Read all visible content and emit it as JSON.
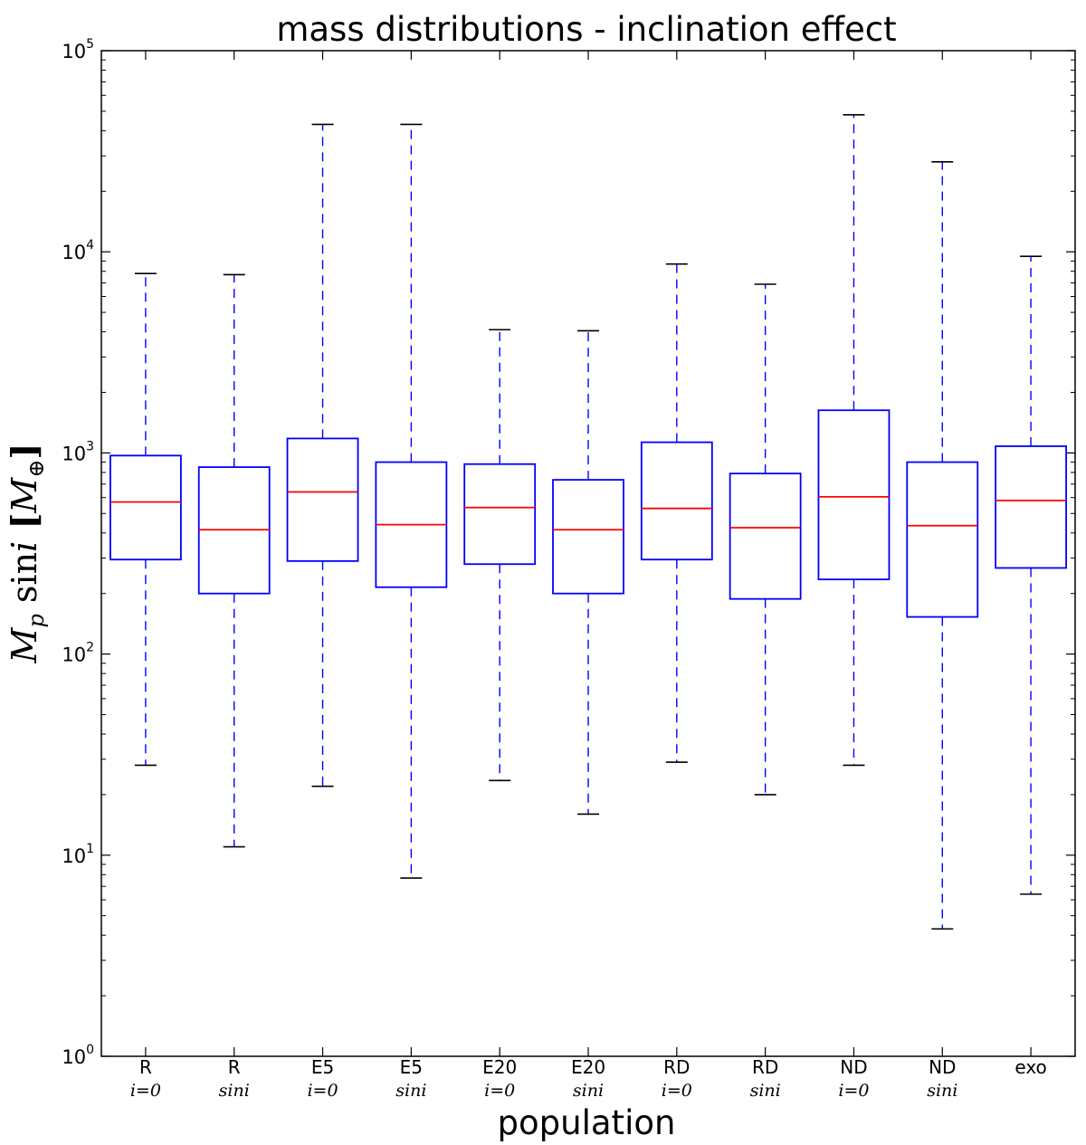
{
  "chart_data": {
    "type": "box",
    "title": "mass distributions - inclination effect",
    "xlabel": "population",
    "ylabel": "M_p sini [M_⊕]",
    "yscale": "log",
    "ylim": [
      1,
      100000
    ],
    "ytick_labels": [
      {
        "base": "10",
        "exp": "0"
      },
      {
        "base": "10",
        "exp": "1"
      },
      {
        "base": "10",
        "exp": "2"
      },
      {
        "base": "10",
        "exp": "3"
      },
      {
        "base": "10",
        "exp": "4"
      },
      {
        "base": "10",
        "exp": "5"
      }
    ],
    "grid": false,
    "colors": {
      "box": "#0000ff",
      "median": "#ff0000",
      "axis": "#000000"
    },
    "categories": [
      {
        "label": "R",
        "sub": "i=0"
      },
      {
        "label": "R",
        "sub": "sini"
      },
      {
        "label": "E5",
        "sub": "i=0"
      },
      {
        "label": "E5",
        "sub": "sini"
      },
      {
        "label": "E20",
        "sub": "i=0"
      },
      {
        "label": "E20",
        "sub": "sini"
      },
      {
        "label": "RD",
        "sub": "i=0"
      },
      {
        "label": "RD",
        "sub": "sini"
      },
      {
        "label": "ND",
        "sub": "i=0"
      },
      {
        "label": "ND",
        "sub": "sini"
      },
      {
        "label": "exo",
        "sub": ""
      }
    ],
    "boxes": [
      {
        "whislo": 28,
        "q1": 295,
        "med": 570,
        "q3": 970,
        "whishi": 7800
      },
      {
        "whislo": 11,
        "q1": 200,
        "med": 415,
        "q3": 850,
        "whishi": 7700
      },
      {
        "whislo": 22,
        "q1": 290,
        "med": 640,
        "q3": 1180,
        "whishi": 43000
      },
      {
        "whislo": 7.7,
        "q1": 215,
        "med": 440,
        "q3": 900,
        "whishi": 43000
      },
      {
        "whislo": 23.5,
        "q1": 280,
        "med": 535,
        "q3": 880,
        "whishi": 4100
      },
      {
        "whislo": 16,
        "q1": 200,
        "med": 415,
        "q3": 735,
        "whishi": 4050
      },
      {
        "whislo": 29,
        "q1": 295,
        "med": 530,
        "q3": 1130,
        "whishi": 8700
      },
      {
        "whislo": 20,
        "q1": 188,
        "med": 425,
        "q3": 790,
        "whishi": 6900
      },
      {
        "whislo": 28,
        "q1": 235,
        "med": 605,
        "q3": 1630,
        "whishi": 48000
      },
      {
        "whislo": 4.3,
        "q1": 153,
        "med": 435,
        "q3": 900,
        "whishi": 28000
      },
      {
        "whislo": 6.4,
        "q1": 268,
        "med": 580,
        "q3": 1080,
        "whishi": 9500
      }
    ]
  }
}
